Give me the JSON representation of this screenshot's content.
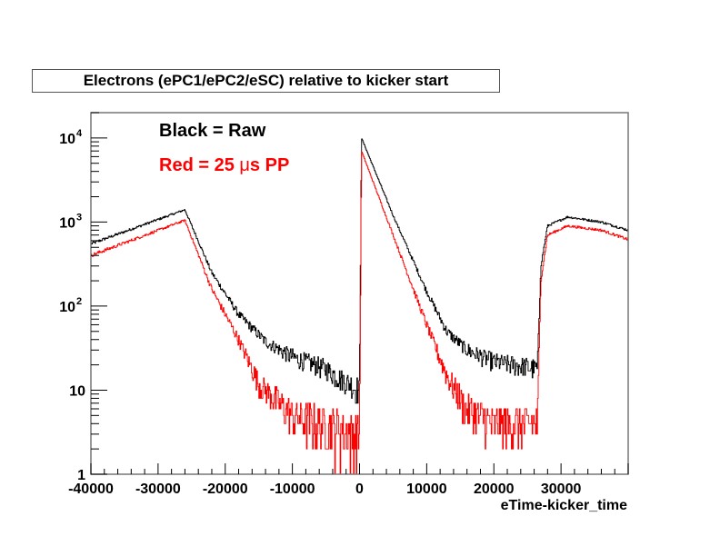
{
  "chart_data": {
    "type": "line",
    "title": "Electrons (ePC1/ePC2/eSC) relative to kicker start",
    "xlabel": "eTime-kicker_time",
    "ylabel": "",
    "xlim": [
      -40000,
      40000
    ],
    "ylim": [
      1,
      20000
    ],
    "yscale": "log",
    "x_ticks": [
      -40000,
      -30000,
      -20000,
      -10000,
      0,
      10000,
      20000,
      30000
    ],
    "x_tick_labels": [
      "-40000",
      "-30000",
      "-20000",
      "-10000",
      "0",
      "10000",
      "20000",
      "30000"
    ],
    "y_ticks": [
      1,
      10,
      100,
      1000,
      10000
    ],
    "y_tick_labels": [
      {
        "base": "1",
        "exp": ""
      },
      {
        "base": "10",
        "exp": ""
      },
      {
        "base": "10",
        "exp": "2"
      },
      {
        "base": "10",
        "exp": "3"
      },
      {
        "base": "10",
        "exp": "4"
      }
    ],
    "grid": false,
    "legend_position": "top-left",
    "annotations": {
      "black": "Black = Raw",
      "red_prefix": "Red = 25 ",
      "red_mu": "μ",
      "red_suffix": "s PP"
    },
    "series": [
      {
        "name": "Raw",
        "color": "#000000",
        "points": [
          [
            -40000,
            550
          ],
          [
            -26000,
            1400
          ],
          [
            -22000,
            250
          ],
          [
            -18000,
            80
          ],
          [
            -14000,
            38
          ],
          [
            -10000,
            25
          ],
          [
            -5000,
            18
          ],
          [
            0,
            10
          ],
          [
            300,
            10000
          ],
          [
            5000,
            1200
          ],
          [
            10000,
            150
          ],
          [
            13000,
            50
          ],
          [
            16000,
            30
          ],
          [
            20000,
            22
          ],
          [
            26500,
            18
          ],
          [
            27000,
            300
          ],
          [
            28000,
            900
          ],
          [
            31000,
            1150
          ],
          [
            36000,
            1000
          ],
          [
            40000,
            800
          ]
        ]
      },
      {
        "name": "25 μs PP",
        "color": "#ff0000",
        "points": [
          [
            -40000,
            400
          ],
          [
            -26000,
            1050
          ],
          [
            -22000,
            160
          ],
          [
            -18000,
            40
          ],
          [
            -15000,
            12
          ],
          [
            -10000,
            5
          ],
          [
            -5000,
            4
          ],
          [
            0,
            3
          ],
          [
            300,
            7000
          ],
          [
            5000,
            700
          ],
          [
            10000,
            60
          ],
          [
            13000,
            15
          ],
          [
            16000,
            6
          ],
          [
            20000,
            4
          ],
          [
            26500,
            4
          ],
          [
            27000,
            200
          ],
          [
            28000,
            700
          ],
          [
            31000,
            900
          ],
          [
            36000,
            800
          ],
          [
            40000,
            620
          ]
        ]
      }
    ]
  }
}
